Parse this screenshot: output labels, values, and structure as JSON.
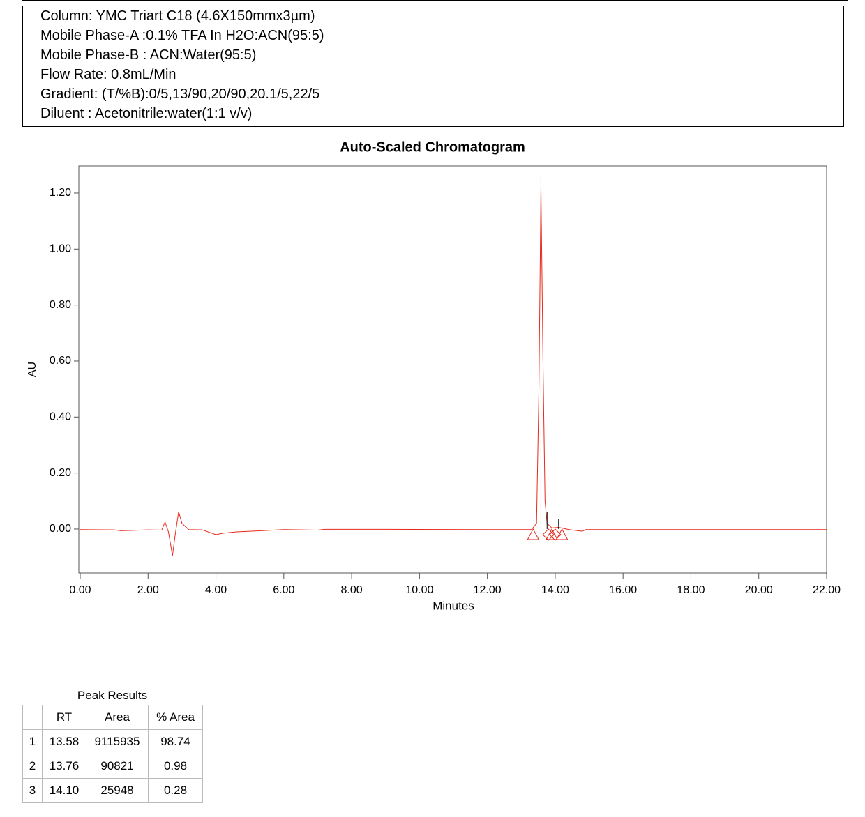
{
  "header": {
    "lines": [
      "Column: YMC Triart C18 (4.6X150mmx3µm)",
      "Mobile Phase-A :0.1% TFA In H2O:ACN(95:5)",
      "Mobile Phase-B : ACN:Water(95:5)",
      "Flow Rate: 0.8mL/Min",
      "Gradient: (T/%B):0/5,13/90,20/90,20.1/5,22/5",
      "Diluent : Acetonitrile:water(1:1 v/v)"
    ]
  },
  "chart_data": {
    "type": "line",
    "title": "Auto-Scaled Chromatogram",
    "x_label": "Minutes",
    "y_label": "AU",
    "color": "#e8291c",
    "x": [
      0,
      1,
      1.2,
      2,
      2.4,
      2.5,
      2.6,
      2.72,
      2.8,
      2.9,
      3.0,
      3.2,
      3.6,
      4.0,
      4.2,
      4.6,
      5.0,
      6.0,
      7.0,
      7.2,
      9,
      12,
      13.3,
      13.45,
      13.52,
      13.58,
      13.64,
      13.7,
      13.76,
      13.9,
      14.1,
      14.4,
      14.8,
      14.9,
      16,
      22
    ],
    "values": [
      -0.002,
      -0.003,
      -0.006,
      -0.003,
      -0.004,
      0.025,
      -0.01,
      -0.095,
      -0.02,
      0.062,
      0.02,
      -0.002,
      -0.003,
      -0.02,
      -0.015,
      -0.01,
      -0.008,
      -0.002,
      -0.004,
      -0.001,
      -0.001,
      -0.002,
      -0.002,
      0.02,
      0.5,
      1.22,
      0.6,
      0.1,
      0.02,
      0.004,
      0.006,
      -0.002,
      -0.008,
      -0.002,
      -0.002,
      -0.002
    ],
    "peak_lines": {
      "x": [
        13.58,
        13.76,
        14.1
      ],
      "top": [
        1.26,
        0.06,
        0.035
      ],
      "color": "#000000"
    },
    "triangles": {
      "x": [
        13.35,
        13.9,
        14.2
      ],
      "y": [
        -0.02,
        -0.02,
        -0.02
      ]
    },
    "diamonds": {
      "x": [
        13.8,
        14.0
      ],
      "y": [
        -0.02,
        -0.02
      ]
    },
    "xlim": [
      0,
      22
    ],
    "ylim": [
      -0.157,
      1.297
    ],
    "xticks": [
      {
        "value": 0,
        "label": "0.00"
      },
      {
        "value": 2,
        "label": "2.00"
      },
      {
        "value": 4,
        "label": "4.00"
      },
      {
        "value": 6,
        "label": "6.00"
      },
      {
        "value": 8,
        "label": "8.00"
      },
      {
        "value": 10,
        "label": "10.00"
      },
      {
        "value": 12,
        "label": "12.00"
      },
      {
        "value": 14,
        "label": "14.00"
      },
      {
        "value": 16,
        "label": "16.00"
      },
      {
        "value": 18,
        "label": "18.00"
      },
      {
        "value": 20,
        "label": "20.00"
      },
      {
        "value": 22,
        "label": "22.00"
      }
    ],
    "yticks": [
      {
        "value": 0,
        "label": "0.00"
      },
      {
        "value": 0.2,
        "label": "0.20"
      },
      {
        "value": 0.4,
        "label": "0.40"
      },
      {
        "value": 0.6,
        "label": "0.60"
      },
      {
        "value": 0.8,
        "label": "0.80"
      },
      {
        "value": 1.0,
        "label": "1.00"
      },
      {
        "value": 1.2,
        "label": "1.20"
      }
    ],
    "grid": false
  },
  "table": {
    "title": "Peak Results",
    "columns": [
      "RT",
      "Area",
      "% Area"
    ],
    "rows": [
      [
        "1",
        "13.58",
        "9115935",
        "98.74"
      ],
      [
        "2",
        "13.76",
        "90821",
        "0.98"
      ],
      [
        "3",
        "14.10",
        "25948",
        "0.28"
      ]
    ]
  }
}
